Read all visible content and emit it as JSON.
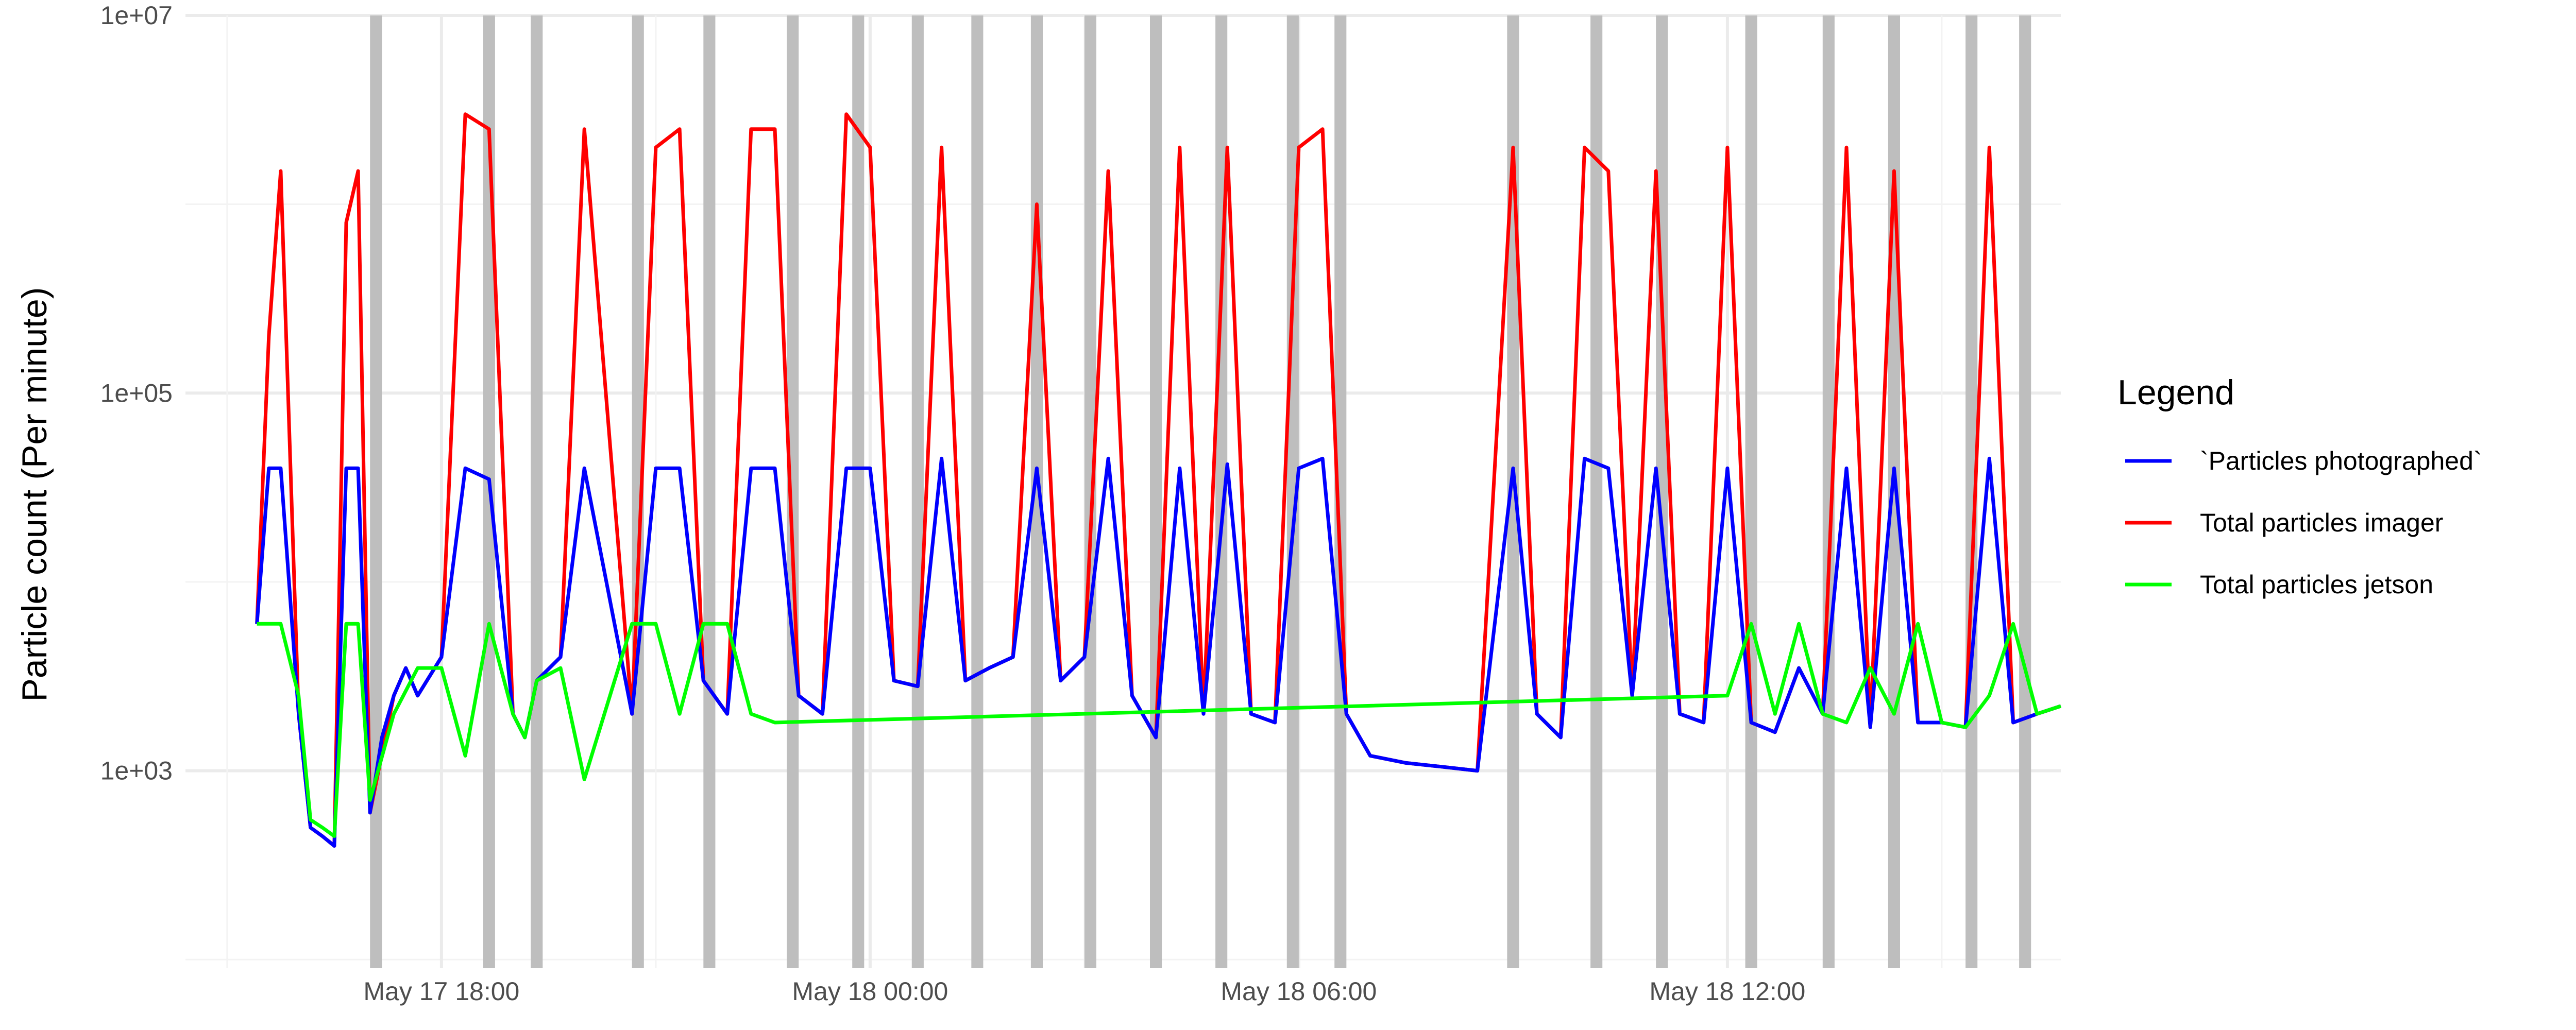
{
  "chart_data": {
    "type": "line",
    "title": "",
    "xlabel": "",
    "ylabel": "Particle count (Per minute)",
    "y_scale": "log10",
    "ylim": [
      90,
      10000000
    ],
    "y_ticks": [
      {
        "value": 1000,
        "label": "1e+03"
      },
      {
        "value": 100000,
        "label": "1e+05"
      },
      {
        "value": 10000000,
        "label": "1e+07"
      }
    ],
    "xlim": [
      "2025-05-17 14:25",
      "2025-05-18 16:40"
    ],
    "x_ticks": [
      {
        "value": "2025-05-17 18:00",
        "label": "May 17 18:00"
      },
      {
        "value": "2025-05-18 00:00",
        "label": "May 18 00:00"
      },
      {
        "value": "2025-05-18 06:00",
        "label": "May 18 06:00"
      },
      {
        "value": "2025-05-18 12:00",
        "label": "May 18 12:00"
      }
    ],
    "grid": true,
    "legend": {
      "title": "Legend",
      "position": "right"
    },
    "shaded_intervals": {
      "color": "#bebebe",
      "intervals": [
        [
          "2025-05-17 17:00",
          "2025-05-17 17:10"
        ],
        [
          "2025-05-17 18:35",
          "2025-05-17 18:45"
        ],
        [
          "2025-05-17 19:15",
          "2025-05-17 19:25"
        ],
        [
          "2025-05-17 20:40",
          "2025-05-17 20:50"
        ],
        [
          "2025-05-17 21:40",
          "2025-05-17 21:50"
        ],
        [
          "2025-05-17 22:50",
          "2025-05-17 23:00"
        ],
        [
          "2025-05-17 23:45",
          "2025-05-17 23:55"
        ],
        [
          "2025-05-18 00:35",
          "2025-05-18 00:45"
        ],
        [
          "2025-05-18 01:25",
          "2025-05-18 01:35"
        ],
        [
          "2025-05-18 02:15",
          "2025-05-18 02:25"
        ],
        [
          "2025-05-18 03:00",
          "2025-05-18 03:10"
        ],
        [
          "2025-05-18 03:55",
          "2025-05-18 04:05"
        ],
        [
          "2025-05-18 04:50",
          "2025-05-18 05:00"
        ],
        [
          "2025-05-18 05:50",
          "2025-05-18 06:00"
        ],
        [
          "2025-05-18 06:30",
          "2025-05-18 06:40"
        ],
        [
          "2025-05-18 08:55",
          "2025-05-18 09:05"
        ],
        [
          "2025-05-18 10:05",
          "2025-05-18 10:15"
        ],
        [
          "2025-05-18 11:00",
          "2025-05-18 11:10"
        ],
        [
          "2025-05-18 12:15",
          "2025-05-18 12:25"
        ],
        [
          "2025-05-18 13:20",
          "2025-05-18 13:30"
        ],
        [
          "2025-05-18 14:15",
          "2025-05-18 14:25"
        ],
        [
          "2025-05-18 15:20",
          "2025-05-18 15:30"
        ],
        [
          "2025-05-18 16:05",
          "2025-05-18 16:15"
        ]
      ]
    },
    "series": [
      {
        "name": "`Particles photographed`",
        "color": "#0000ff",
        "x": [
          "2025-05-17 15:25",
          "2025-05-17 15:35",
          "2025-05-17 15:45",
          "2025-05-17 16:00",
          "2025-05-17 16:10",
          "2025-05-17 16:20",
          "2025-05-17 16:30",
          "2025-05-17 16:40",
          "2025-05-17 16:50",
          "2025-05-17 17:00",
          "2025-05-17 17:10",
          "2025-05-17 17:20",
          "2025-05-17 17:30",
          "2025-05-17 17:40",
          "2025-05-17 18:00",
          "2025-05-17 18:20",
          "2025-05-17 18:40",
          "2025-05-17 19:00",
          "2025-05-17 19:10",
          "2025-05-17 19:20",
          "2025-05-17 19:40",
          "2025-05-17 20:00",
          "2025-05-17 20:40",
          "2025-05-17 21:00",
          "2025-05-17 21:20",
          "2025-05-17 21:40",
          "2025-05-17 22:00",
          "2025-05-17 22:20",
          "2025-05-17 22:40",
          "2025-05-17 23:00",
          "2025-05-17 23:20",
          "2025-05-17 23:40",
          "2025-05-18 00:00",
          "2025-05-18 00:20",
          "2025-05-18 00:40",
          "2025-05-18 01:00",
          "2025-05-18 01:20",
          "2025-05-18 01:40",
          "2025-05-18 02:00",
          "2025-05-18 02:20",
          "2025-05-18 02:40",
          "2025-05-18 03:00",
          "2025-05-18 03:20",
          "2025-05-18 03:40",
          "2025-05-18 04:00",
          "2025-05-18 04:20",
          "2025-05-18 04:40",
          "2025-05-18 05:00",
          "2025-05-18 05:20",
          "2025-05-18 05:40",
          "2025-05-18 06:00",
          "2025-05-18 06:20",
          "2025-05-18 06:40",
          "2025-05-18 07:00",
          "2025-05-18 07:30",
          "2025-05-18 08:00",
          "2025-05-18 08:30",
          "2025-05-18 09:00",
          "2025-05-18 09:20",
          "2025-05-18 09:40",
          "2025-05-18 10:00",
          "2025-05-18 10:20",
          "2025-05-18 10:40",
          "2025-05-18 11:00",
          "2025-05-18 11:20",
          "2025-05-18 11:40",
          "2025-05-18 12:00",
          "2025-05-18 12:20",
          "2025-05-18 12:40",
          "2025-05-18 13:00",
          "2025-05-18 13:20",
          "2025-05-18 13:40",
          "2025-05-18 14:00",
          "2025-05-18 14:20",
          "2025-05-18 14:40",
          "2025-05-18 15:00",
          "2025-05-18 15:20",
          "2025-05-18 15:40",
          "2025-05-18 16:00",
          "2025-05-18 16:20",
          "2025-05-18 16:40"
        ],
        "y": [
          6000,
          40000,
          40000,
          2000,
          500,
          450,
          400,
          40000,
          40000,
          600,
          1500,
          2500,
          3500,
          2500,
          4000,
          40000,
          35000,
          2000,
          1500,
          3000,
          4000,
          40000,
          2000,
          40000,
          40000,
          3000,
          2000,
          40000,
          40000,
          2500,
          2000,
          40000,
          40000,
          3000,
          2800,
          45000,
          3000,
          3500,
          4000,
          40000,
          3000,
          4000,
          45000,
          2500,
          1500,
          40000,
          2000,
          42000,
          2000,
          1800,
          40000,
          45000,
          2000,
          1200,
          1100,
          1050,
          1000,
          40000,
          2000,
          1500,
          45000,
          40000,
          2500,
          40000,
          2000,
          1800,
          40000,
          1800,
          1600,
          3500,
          2000,
          40000,
          1700,
          40000,
          1800,
          1800,
          1700,
          45000,
          1800,
          2000,
          2200
        ]
      },
      {
        "name": "Total particles imager",
        "color": "#ff0000",
        "x": [
          "2025-05-17 15:25",
          "2025-05-17 15:35",
          "2025-05-17 15:45",
          "2025-05-17 16:00",
          "2025-05-17 16:10",
          "2025-05-17 16:20",
          "2025-05-17 16:30",
          "2025-05-17 16:40",
          "2025-05-17 16:50",
          "2025-05-17 17:00",
          "2025-05-17 17:20",
          "2025-05-17 17:30",
          "2025-05-17 17:40",
          "2025-05-17 18:00",
          "2025-05-17 18:20",
          "2025-05-17 18:40",
          "2025-05-17 19:00",
          "2025-05-17 19:10",
          "2025-05-17 19:20",
          "2025-05-17 19:40",
          "2025-05-17 20:00",
          "2025-05-17 20:40",
          "2025-05-17 21:00",
          "2025-05-17 21:20",
          "2025-05-17 21:40",
          "2025-05-17 22:00",
          "2025-05-17 22:20",
          "2025-05-17 22:40",
          "2025-05-17 23:00",
          "2025-05-17 23:20",
          "2025-05-17 23:40",
          "2025-05-18 00:00",
          "2025-05-18 00:20",
          "2025-05-18 00:40",
          "2025-05-18 01:00",
          "2025-05-18 01:20",
          "2025-05-18 01:40",
          "2025-05-18 02:00",
          "2025-05-18 02:20",
          "2025-05-18 02:40",
          "2025-05-18 03:00",
          "2025-05-18 03:20",
          "2025-05-18 03:40",
          "2025-05-18 04:00",
          "2025-05-18 04:20",
          "2025-05-18 04:40",
          "2025-05-18 05:00",
          "2025-05-18 05:20",
          "2025-05-18 05:40",
          "2025-05-18 06:00",
          "2025-05-18 06:20",
          "2025-05-18 06:40",
          "2025-05-18 07:00",
          "2025-05-18 07:30",
          "2025-05-18 08:00",
          "2025-05-18 08:30",
          "2025-05-18 09:00",
          "2025-05-18 09:20",
          "2025-05-18 09:40",
          "2025-05-18 10:00",
          "2025-05-18 10:20",
          "2025-05-18 10:40",
          "2025-05-18 11:00",
          "2025-05-18 11:20",
          "2025-05-18 11:40",
          "2025-05-18 12:00",
          "2025-05-18 12:20",
          "2025-05-18 12:40",
          "2025-05-18 13:00",
          "2025-05-18 13:20",
          "2025-05-18 13:40",
          "2025-05-18 14:00",
          "2025-05-18 14:20",
          "2025-05-18 14:40",
          "2025-05-18 15:00",
          "2025-05-18 15:20",
          "2025-05-18 15:40",
          "2025-05-18 16:00",
          "2025-05-18 16:20",
          "2025-05-18 16:40"
        ],
        "y": [
          6000,
          200000,
          1500000,
          2000,
          500,
          450,
          400,
          800000,
          1500000,
          600,
          2500,
          3500,
          2500,
          4000,
          3000000,
          2500000,
          2000,
          1500,
          3000,
          4000,
          2500000,
          2000,
          2000000,
          2500000,
          3000,
          2000,
          2500000,
          2500000,
          2500,
          2000,
          3000000,
          2000000,
          3000,
          2800,
          2000000,
          3000,
          3500,
          4000,
          1000000,
          3000,
          4000,
          1500000,
          2500,
          1500,
          2000000,
          2000,
          2000000,
          2000,
          1800,
          2000000,
          2500000,
          2000,
          1200,
          1100,
          1050,
          1000,
          2000000,
          2000,
          1500,
          2000000,
          1500000,
          2500,
          1500000,
          2000,
          1800,
          2000000,
          1800,
          1600,
          3500,
          2000,
          2000000,
          1700,
          1500000,
          1800,
          1800,
          1700,
          2000000,
          1800,
          2000,
          2200
        ]
      },
      {
        "name": "Total particles jetson",
        "color": "#00ff00",
        "x": [
          "2025-05-17 15:25",
          "2025-05-17 15:45",
          "2025-05-17 16:00",
          "2025-05-17 16:10",
          "2025-05-17 16:20",
          "2025-05-17 16:30",
          "2025-05-17 16:40",
          "2025-05-17 16:50",
          "2025-05-17 17:00",
          "2025-05-17 17:20",
          "2025-05-17 17:40",
          "2025-05-17 18:00",
          "2025-05-17 18:20",
          "2025-05-17 18:40",
          "2025-05-17 19:00",
          "2025-05-17 19:10",
          "2025-05-17 19:20",
          "2025-05-17 19:40",
          "2025-05-17 20:00",
          "2025-05-17 20:40",
          "2025-05-17 21:00",
          "2025-05-17 21:20",
          "2025-05-17 21:40",
          "2025-05-17 22:00",
          "2025-05-17 22:20",
          "2025-05-17 22:40",
          "2025-05-18 12:00",
          "2025-05-18 12:20",
          "2025-05-18 12:40",
          "2025-05-18 13:00",
          "2025-05-18 13:20",
          "2025-05-18 13:40",
          "2025-05-18 14:00",
          "2025-05-18 14:20",
          "2025-05-18 14:40",
          "2025-05-18 15:00",
          "2025-05-18 15:20",
          "2025-05-18 15:40",
          "2025-05-18 16:00",
          "2025-05-18 16:20",
          "2025-05-18 16:40"
        ],
        "y": [
          6000,
          6000,
          2500,
          550,
          500,
          450,
          6000,
          6000,
          700,
          2000,
          3500,
          3500,
          1200,
          6000,
          2000,
          1500,
          3000,
          3500,
          900,
          6000,
          6000,
          2000,
          6000,
          6000,
          2000,
          1800,
          2500,
          6000,
          2000,
          6000,
          2000,
          1800,
          3500,
          2000,
          6000,
          1800,
          1700,
          2500,
          6000,
          2000,
          2200
        ]
      }
    ]
  }
}
